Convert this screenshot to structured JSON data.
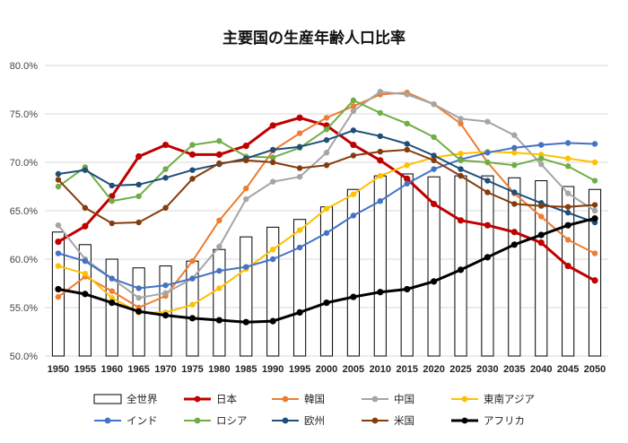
{
  "chart_data": {
    "type": "bar+line",
    "title": "主要国の生産年齢人口比率",
    "x": [
      "1950",
      "1955",
      "1960",
      "1965",
      "1970",
      "1975",
      "1980",
      "1985",
      "1990",
      "1995",
      "2000",
      "2005",
      "2010",
      "2015",
      "2020",
      "2025",
      "2030",
      "2035",
      "2040",
      "2045",
      "2050"
    ],
    "ylim": [
      0.5,
      0.8
    ],
    "yticks": [
      "50.0%",
      "55.0%",
      "60.0%",
      "65.0%",
      "70.0%",
      "75.0%",
      "80.0%"
    ],
    "grid": "horizontal",
    "legend_position": "bottom",
    "bar_series": {
      "name": "全世界",
      "color": "#000000",
      "values": [
        0.628,
        0.615,
        0.6,
        0.591,
        0.593,
        0.598,
        0.61,
        0.623,
        0.633,
        0.641,
        0.654,
        0.672,
        0.686,
        0.688,
        0.685,
        0.686,
        0.686,
        0.684,
        0.681,
        0.675,
        0.672
      ]
    },
    "series": [
      {
        "name": "日本",
        "color": "#c00000",
        "width": 3,
        "values": [
          0.618,
          0.634,
          0.665,
          0.706,
          0.718,
          0.708,
          0.708,
          0.717,
          0.738,
          0.746,
          0.738,
          0.718,
          0.702,
          0.683,
          0.657,
          0.64,
          0.635,
          0.628,
          0.617,
          0.593,
          0.578
        ]
      },
      {
        "name": "韓国",
        "color": "#ed7d31",
        "width": 2,
        "values": [
          0.561,
          0.582,
          0.567,
          0.55,
          0.562,
          0.598,
          0.64,
          0.673,
          0.712,
          0.73,
          0.746,
          0.758,
          0.77,
          0.772,
          0.76,
          0.74,
          0.7,
          0.668,
          0.644,
          0.62,
          0.606
        ]
      },
      {
        "name": "中国",
        "color": "#a5a5a5",
        "width": 2,
        "values": [
          0.635,
          0.6,
          0.58,
          0.56,
          0.565,
          0.58,
          0.613,
          0.662,
          0.68,
          0.685,
          0.71,
          0.753,
          0.773,
          0.77,
          0.76,
          0.745,
          0.742,
          0.728,
          0.698,
          0.668,
          0.65
        ]
      },
      {
        "name": "東南アジア",
        "color": "#ffc000",
        "width": 2,
        "values": [
          0.593,
          0.585,
          0.56,
          0.545,
          0.545,
          0.553,
          0.57,
          0.59,
          0.61,
          0.63,
          0.652,
          0.667,
          0.686,
          0.697,
          0.705,
          0.709,
          0.711,
          0.71,
          0.708,
          0.704,
          0.7
        ]
      },
      {
        "name": "インド",
        "color": "#4472c4",
        "width": 2,
        "values": [
          0.606,
          0.598,
          0.58,
          0.57,
          0.573,
          0.58,
          0.588,
          0.592,
          0.6,
          0.612,
          0.627,
          0.645,
          0.66,
          0.678,
          0.693,
          0.703,
          0.71,
          0.715,
          0.718,
          0.72,
          0.719
        ]
      },
      {
        "name": "ロシア",
        "color": "#70ad47",
        "width": 2,
        "values": [
          0.675,
          0.695,
          0.66,
          0.665,
          0.693,
          0.718,
          0.722,
          0.706,
          0.705,
          0.715,
          0.734,
          0.764,
          0.751,
          0.74,
          0.726,
          0.702,
          0.7,
          0.697,
          0.704,
          0.696,
          0.681
        ]
      },
      {
        "name": "欧州",
        "color": "#1f4e79",
        "width": 2,
        "values": [
          0.688,
          0.692,
          0.676,
          0.677,
          0.684,
          0.692,
          0.698,
          0.704,
          0.713,
          0.716,
          0.723,
          0.733,
          0.727,
          0.719,
          0.707,
          0.693,
          0.681,
          0.669,
          0.658,
          0.648,
          0.638
        ]
      },
      {
        "name": "米国",
        "color": "#843c0c",
        "width": 2,
        "values": [
          0.682,
          0.653,
          0.637,
          0.638,
          0.653,
          0.683,
          0.699,
          0.702,
          0.7,
          0.694,
          0.697,
          0.707,
          0.711,
          0.713,
          0.702,
          0.686,
          0.669,
          0.657,
          0.655,
          0.654,
          0.656
        ]
      },
      {
        "name": "アフリカ",
        "color": "#000000",
        "width": 3,
        "values": [
          0.569,
          0.564,
          0.555,
          0.546,
          0.542,
          0.539,
          0.537,
          0.535,
          0.536,
          0.545,
          0.555,
          0.561,
          0.566,
          0.569,
          0.577,
          0.589,
          0.602,
          0.615,
          0.625,
          0.635,
          0.642
        ]
      }
    ]
  }
}
